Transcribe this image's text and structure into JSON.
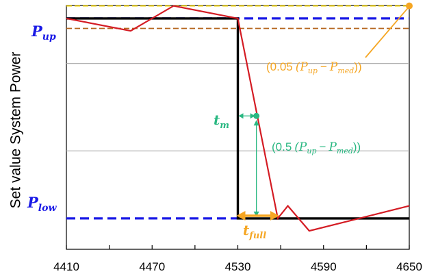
{
  "chart_data": {
    "type": "line",
    "title": "",
    "xlabel": "",
    "ylabel": "Set value System Power",
    "xlim": [
      4410,
      4650
    ],
    "ylim": [
      0,
      1
    ],
    "xticks": [
      4410,
      4470,
      4530,
      4590,
      4650
    ],
    "xtick_labels": [
      "4410",
      "4470",
      "4530",
      "4590",
      "4650"
    ],
    "grid": false,
    "series": [
      {
        "line_style": "solid",
        "color": "#000000",
        "x": [
          4410,
          4530,
          4530,
          4650
        ],
        "y": [
          0.94,
          0.94,
          0.14,
          0.14
        ]
      },
      {
        "line_style": "solid",
        "color": "#d41c24",
        "x": [
          4410,
          4455,
          4485,
          4530,
          4558,
          4565,
          4580,
          4650
        ],
        "y": [
          0.94,
          0.89,
          0.99,
          0.94,
          0.14,
          0.19,
          0.09,
          0.19
        ]
      }
    ],
    "reference_lines": [
      {
        "y": 0.94,
        "style": "dashed",
        "color": "#1a1ae6",
        "from_x": 4410,
        "to_x": 4650
      },
      {
        "y": 0.14,
        "style": "dashed",
        "color": "#1a1ae6",
        "from_x": 4410,
        "to_x": 4530
      },
      {
        "y": 0.99,
        "style": "dashed",
        "color": "#f0d000",
        "from_x": 4410,
        "to_x": 4650
      },
      {
        "y": 0.9,
        "style": "dashed",
        "color": "#b5651d",
        "from_x": 4410,
        "to_x": 4650
      },
      {
        "y": 0.76,
        "style": "solid",
        "color": "#b0b0b0",
        "from_x": 4410,
        "to_x": 4650
      },
      {
        "y": 0.41,
        "style": "solid",
        "color": "#b0b0b0",
        "from_x": 4410,
        "to_x": 4650
      }
    ],
    "annotations": {
      "p_up": {
        "symbol": "P",
        "sub": "up",
        "color": "#1a1ae6",
        "y": 0.94
      },
      "p_low": {
        "symbol": "P",
        "sub": "low",
        "color": "#1a1ae6",
        "y": 0.14
      },
      "t_m": {
        "symbol": "t",
        "sub": "m",
        "color": "#2ab882",
        "x": 4543,
        "y": 0.55
      },
      "t_full": {
        "symbol": "t",
        "sub": "full",
        "color": "#f5a623",
        "x_from": 4530,
        "x_to": 4558
      },
      "five_percent": {
        "prefix": "(0.05",
        "expr": "(P",
        "sub1": "up",
        "minus": "−",
        "p2": "P",
        "sub2": "med",
        "suffix": "))",
        "color": "#f5a623",
        "point_x": 4650,
        "point_y": 0.99
      },
      "fifty_percent": {
        "prefix": "(0.5",
        "expr": "(P",
        "sub1": "up",
        "minus": "−",
        "p2": "P",
        "sub2": "med",
        "suffix": "))",
        "color": "#2ab882",
        "point_x": 4543,
        "point_y": 0.55
      }
    }
  }
}
